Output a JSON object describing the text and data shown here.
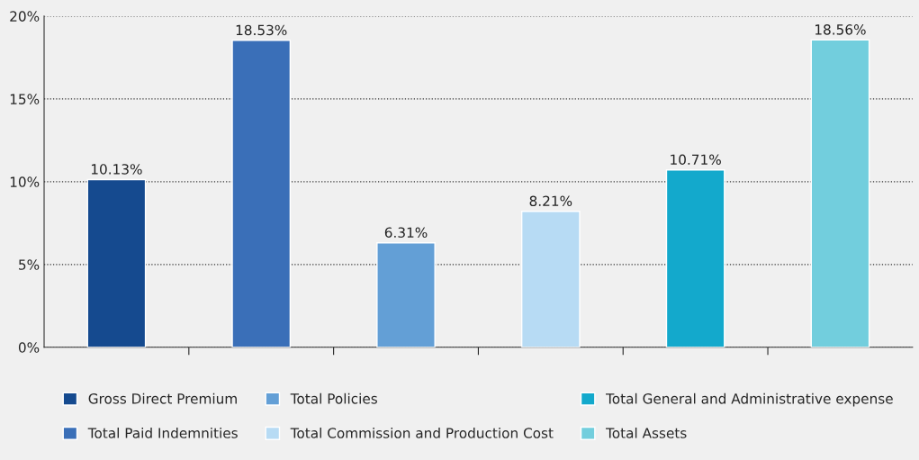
{
  "chart_data": {
    "type": "bar",
    "categories": [
      null,
      null,
      null,
      null,
      null,
      null
    ],
    "series": [
      {
        "name": "Gross Direct Premium",
        "color": "#154a8f",
        "values": [
          10.13,
          null,
          null,
          null,
          null,
          null
        ],
        "value_labels": [
          "10.13%",
          null,
          null,
          null,
          null,
          null
        ]
      },
      {
        "name": "Total Paid Indemnities",
        "color": "#3a6fb8",
        "values": [
          null,
          18.53,
          null,
          null,
          null,
          null
        ],
        "value_labels": [
          null,
          "18.53%",
          null,
          null,
          null,
          null
        ]
      },
      {
        "name": "Total Policies",
        "color": "#639fd6",
        "values": [
          null,
          null,
          6.31,
          null,
          null,
          null
        ],
        "value_labels": [
          null,
          null,
          "6.31%",
          null,
          null,
          null
        ]
      },
      {
        "name": "Total Commission and Production Cost",
        "color": "#b7dbf4",
        "values": [
          null,
          null,
          null,
          8.21,
          null,
          null
        ],
        "value_labels": [
          null,
          null,
          null,
          "8.21%",
          null,
          null
        ]
      },
      {
        "name": "Total General and Administrative expense",
        "color": "#13a9cc",
        "values": [
          null,
          null,
          null,
          null,
          10.71,
          null
        ],
        "value_labels": [
          null,
          null,
          null,
          null,
          "10.71%",
          null
        ]
      },
      {
        "name": "Total Assets",
        "color": "#72cedd",
        "values": [
          null,
          null,
          null,
          null,
          null,
          18.56
        ],
        "value_labels": [
          null,
          null,
          null,
          null,
          null,
          "18.56%"
        ]
      }
    ],
    "ylim": [
      0,
      20
    ],
    "yticks": [
      {
        "value": 0,
        "label": "0%"
      },
      {
        "value": 5,
        "label": "5%"
      },
      {
        "value": 10,
        "label": "10%"
      },
      {
        "value": 15,
        "label": "15%"
      },
      {
        "value": 20,
        "label": "20%"
      }
    ],
    "grid": "y",
    "legend": "bottom"
  }
}
